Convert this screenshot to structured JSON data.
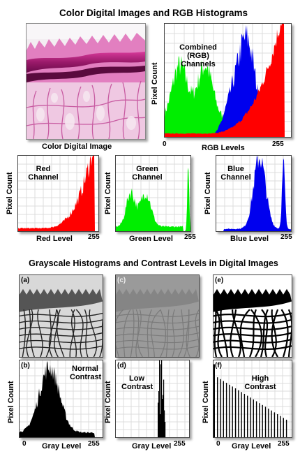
{
  "titles": {
    "top": "Color Digital Images and RGB Histograms",
    "bottom": "Grayscale Histograms and Contrast Levels in Digital Images"
  },
  "color_image": {
    "caption": "Color Digital Image"
  },
  "combined": {
    "y_label": "Pixel Count",
    "x_label": "RGB Levels",
    "x_min": "0",
    "x_max": "255",
    "label_lines": [
      "Combined",
      "(RGB)",
      "Channels"
    ]
  },
  "channels": [
    {
      "name_lines": [
        "Red",
        "Channel"
      ],
      "x_label": "Red Level",
      "x_max": "255",
      "y_label": "Pixel Count",
      "color": "#ff0000"
    },
    {
      "name_lines": [
        "Green",
        "Channel"
      ],
      "x_label": "Green Level",
      "x_max": "255",
      "y_label": "Pixel Count",
      "color": "#00ee00"
    },
    {
      "name_lines": [
        "Blue",
        "Channel"
      ],
      "x_label": "Blue Level",
      "x_max": "255",
      "y_label": "Pixel Count",
      "color": "#0000ee"
    }
  ],
  "gray_images": [
    {
      "tag": "(a)"
    },
    {
      "tag": "(c)"
    },
    {
      "tag": "(e)"
    }
  ],
  "gray_histograms": [
    {
      "tag": "(b)",
      "label_lines": [
        "Normal",
        "Contrast"
      ]
    },
    {
      "tag": "(d)",
      "label_lines": [
        "Low",
        "Contrast"
      ]
    },
    {
      "tag": "(f)",
      "label_lines": [
        "High",
        "Contrast"
      ]
    }
  ],
  "gray_axes": {
    "y_label": "Pixel Count",
    "x_label": "Gray Level",
    "x_min": "0",
    "x_max": "255"
  },
  "colors": {
    "red": "#ff0000",
    "green": "#00ee00",
    "blue": "#0000ee",
    "gray_fill": "#000000"
  }
}
